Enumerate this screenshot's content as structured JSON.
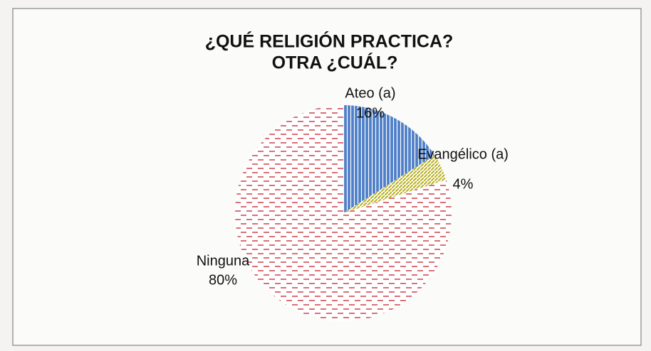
{
  "chart_data": {
    "type": "pie",
    "title": [
      "¿QUÉ RELIGIÓN PRACTICA?",
      "OTRA ¿CUÁL?"
    ],
    "categories": [
      "Ateo (a)",
      "Evangélico (a)",
      "Ninguna"
    ],
    "values": [
      16,
      4,
      80
    ],
    "value_labels": [
      "16%",
      "4%",
      "80%"
    ],
    "colors": [
      "#4f7fc8",
      "#b8b020",
      "#c8323c"
    ]
  }
}
